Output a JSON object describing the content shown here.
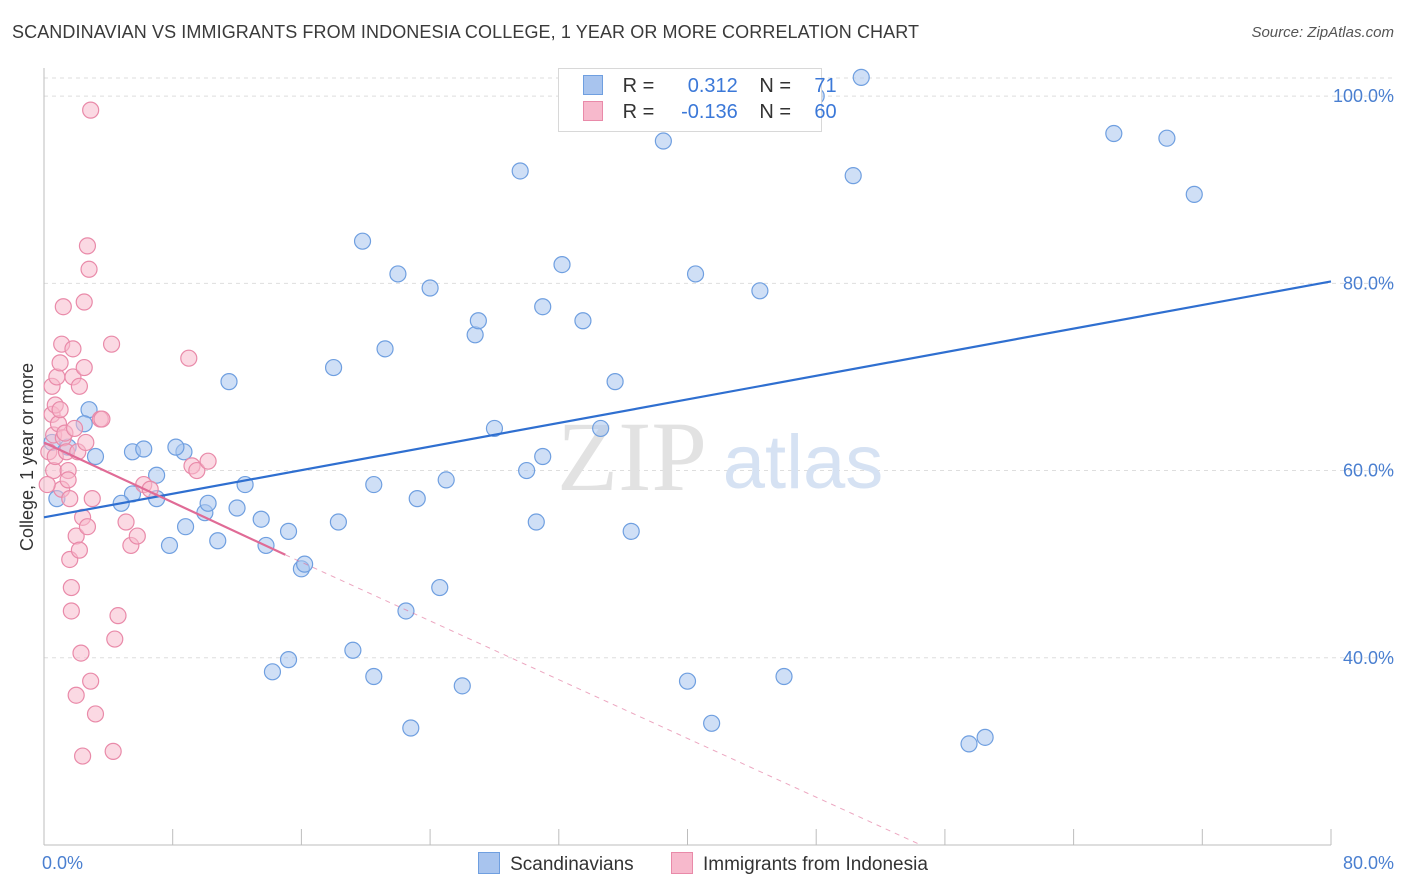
{
  "title": "SCANDINAVIAN VS IMMIGRANTS FROM INDONESIA COLLEGE, 1 YEAR OR MORE CORRELATION CHART",
  "source": "Source: ZipAtlas.com",
  "watermark": {
    "zip": "ZIP",
    "atlas": "atlas"
  },
  "legend": {
    "rows": [
      {
        "r_label": "R =",
        "r_value": "0.312",
        "n_label": "N =",
        "n_value": "71",
        "color": "#a8c4ee",
        "border": "#6f9fe0"
      },
      {
        "r_label": "R =",
        "r_value": "-0.136",
        "n_label": "N =",
        "n_value": "60",
        "color": "#f7b9cc",
        "border": "#e98aa9"
      }
    ]
  },
  "chart_data": {
    "type": "scatter",
    "title": "SCANDINAVIAN VS IMMIGRANTS FROM INDONESIA COLLEGE, 1 YEAR OR MORE CORRELATION CHART",
    "xlabel": "",
    "ylabel": "College, 1 year or more",
    "xlim": [
      0,
      80
    ],
    "ylim": [
      20,
      103
    ],
    "x_tick_labels": [
      "0.0%",
      "80.0%"
    ],
    "y_ticks": [
      40,
      60,
      80,
      100
    ],
    "y_tick_labels": [
      "40.0%",
      "60.0%",
      "80.0%",
      "100.0%"
    ],
    "grid": true,
    "legend_placement": "top-center",
    "series": [
      {
        "name": "Scandinavians",
        "color": "#a8c4ee",
        "edge": "#6f9fe0",
        "trend_color": "#2f6fd0",
        "trend": {
          "x0": 0,
          "y0": 55.0,
          "x1": 80,
          "y1": 80.2
        },
        "points": [
          [
            0.5,
            63.0
          ],
          [
            0.8,
            57.0
          ],
          [
            2.8,
            66.5
          ],
          [
            2.5,
            65.0
          ],
          [
            1.5,
            62.5
          ],
          [
            3.2,
            61.5
          ],
          [
            5.5,
            62.0
          ],
          [
            5.5,
            57.5
          ],
          [
            6.2,
            62.3
          ],
          [
            4.8,
            56.5
          ],
          [
            7.0,
            59.5
          ],
          [
            7.0,
            57.0
          ],
          [
            8.7,
            62.0
          ],
          [
            8.2,
            62.5
          ],
          [
            7.8,
            52.0
          ],
          [
            8.8,
            54.0
          ],
          [
            10.0,
            55.5
          ],
          [
            10.2,
            56.5
          ],
          [
            10.8,
            52.5
          ],
          [
            11.5,
            69.5
          ],
          [
            12.0,
            56.0
          ],
          [
            12.5,
            58.5
          ],
          [
            13.5,
            54.8
          ],
          [
            13.8,
            52.0
          ],
          [
            14.2,
            38.5
          ],
          [
            15.2,
            39.8
          ],
          [
            15.2,
            53.5
          ],
          [
            16.0,
            49.5
          ],
          [
            16.2,
            50.0
          ],
          [
            18.0,
            71.0
          ],
          [
            18.3,
            54.5
          ],
          [
            19.2,
            40.8
          ],
          [
            19.8,
            84.5
          ],
          [
            20.5,
            38.0
          ],
          [
            20.5,
            58.5
          ],
          [
            21.2,
            73.0
          ],
          [
            22.0,
            81.0
          ],
          [
            22.5,
            45.0
          ],
          [
            22.8,
            32.5
          ],
          [
            23.2,
            57.0
          ],
          [
            24.0,
            79.5
          ],
          [
            24.6,
            47.5
          ],
          [
            25.0,
            59.0
          ],
          [
            26.0,
            37.0
          ],
          [
            26.8,
            74.5
          ],
          [
            27.0,
            76.0
          ],
          [
            28.0,
            64.5
          ],
          [
            29.6,
            92.0
          ],
          [
            30.6,
            54.5
          ],
          [
            30.0,
            60.0
          ],
          [
            31.0,
            61.5
          ],
          [
            31.0,
            77.5
          ],
          [
            32.2,
            82.0
          ],
          [
            33.5,
            76.0
          ],
          [
            34.6,
            64.5
          ],
          [
            35.5,
            69.5
          ],
          [
            36.5,
            53.5
          ],
          [
            38.5,
            95.2
          ],
          [
            40.0,
            37.5
          ],
          [
            40.5,
            81.0
          ],
          [
            41.5,
            33.0
          ],
          [
            44.5,
            79.2
          ],
          [
            46.0,
            38.0
          ],
          [
            48.0,
            100.0
          ],
          [
            50.3,
            91.5
          ],
          [
            50.8,
            102.0
          ],
          [
            57.5,
            30.8
          ],
          [
            58.5,
            31.5
          ],
          [
            66.5,
            96.0
          ],
          [
            69.8,
            95.5
          ],
          [
            71.5,
            89.5
          ]
        ]
      },
      {
        "name": "Immigrants from Indonesia",
        "color": "#f7b9cc",
        "edge": "#e98aa9",
        "trend_color": "#e06b96",
        "trend": {
          "x0": 0,
          "y0": 63.0,
          "x1": 15,
          "y1": 51.0
        },
        "trend_dashed": {
          "x0": 15,
          "y0": 51.0,
          "x1": 80,
          "y1": 0.0
        },
        "points": [
          [
            0.3,
            62.0
          ],
          [
            0.5,
            66.0
          ],
          [
            0.5,
            69.0
          ],
          [
            0.6,
            63.8
          ],
          [
            0.6,
            60.0
          ],
          [
            0.7,
            67.0
          ],
          [
            0.7,
            61.5
          ],
          [
            0.8,
            70.0
          ],
          [
            0.9,
            65.0
          ],
          [
            1.0,
            66.5
          ],
          [
            1.0,
            71.5
          ],
          [
            1.1,
            73.5
          ],
          [
            1.1,
            58.0
          ],
          [
            1.2,
            77.5
          ],
          [
            1.2,
            63.5
          ],
          [
            1.3,
            64.0
          ],
          [
            1.4,
            62.0
          ],
          [
            1.5,
            60.0
          ],
          [
            1.5,
            59.0
          ],
          [
            1.6,
            57.0
          ],
          [
            1.6,
            50.5
          ],
          [
            1.7,
            47.5
          ],
          [
            1.7,
            45.0
          ],
          [
            1.8,
            70.0
          ],
          [
            1.8,
            73.0
          ],
          [
            1.9,
            64.5
          ],
          [
            2.0,
            53.0
          ],
          [
            2.0,
            36.0
          ],
          [
            2.1,
            62.0
          ],
          [
            2.2,
            69.0
          ],
          [
            2.2,
            51.5
          ],
          [
            2.3,
            40.5
          ],
          [
            2.4,
            55.0
          ],
          [
            2.4,
            29.5
          ],
          [
            2.5,
            78.0
          ],
          [
            2.5,
            71.0
          ],
          [
            2.6,
            63.0
          ],
          [
            2.7,
            54.0
          ],
          [
            2.7,
            84.0
          ],
          [
            2.8,
            81.5
          ],
          [
            2.9,
            98.5
          ],
          [
            2.9,
            37.5
          ],
          [
            3.0,
            57.0
          ],
          [
            3.2,
            34.0
          ],
          [
            3.5,
            65.5
          ],
          [
            3.6,
            65.5
          ],
          [
            4.2,
            73.5
          ],
          [
            4.3,
            30.0
          ],
          [
            4.4,
            42.0
          ],
          [
            4.6,
            44.5
          ],
          [
            5.1,
            54.5
          ],
          [
            5.4,
            52.0
          ],
          [
            5.8,
            53.0
          ],
          [
            6.2,
            58.5
          ],
          [
            6.6,
            58.0
          ],
          [
            9.0,
            72.0
          ],
          [
            9.2,
            60.5
          ],
          [
            9.5,
            60.0
          ],
          [
            10.2,
            61.0
          ],
          [
            0.2,
            58.5
          ]
        ]
      }
    ]
  },
  "bottom_legend": [
    {
      "label": "Scandinavians",
      "color": "#a8c4ee",
      "border": "#6f9fe0"
    },
    {
      "label": "Immigrants from Indonesia",
      "color": "#f7b9cc",
      "border": "#e98aa9"
    }
  ]
}
